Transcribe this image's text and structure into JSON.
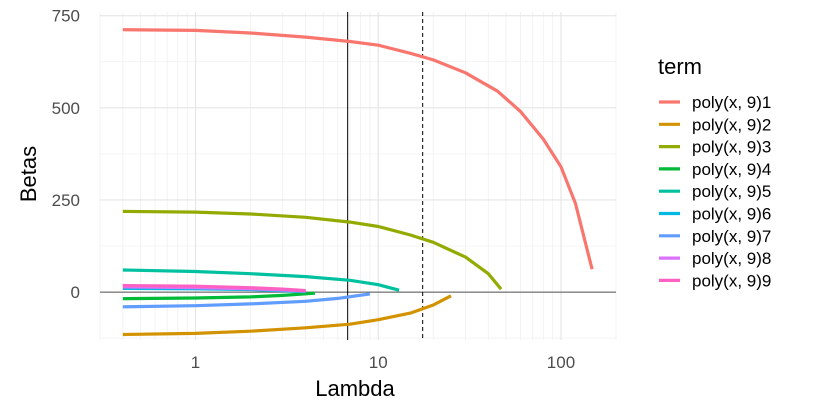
{
  "chart_data": {
    "type": "line",
    "xlabel": "Lambda",
    "ylabel": "Betas",
    "x_scale": "log10",
    "xlim": [
      0.3,
      200
    ],
    "ylim": [
      -130,
      760
    ],
    "x_ticks": [
      1,
      10,
      100
    ],
    "x_tick_labels": [
      "1",
      "10",
      "100"
    ],
    "y_ticks": [
      0,
      250,
      500,
      750
    ],
    "y_tick_labels": [
      "0",
      "250",
      "500",
      "750"
    ],
    "grid": true,
    "reference_lines": {
      "horizontal_zero": 0,
      "vertical_solid": 6.8,
      "vertical_dashed": 17.5
    },
    "legend_title": "term",
    "legend_position": "right",
    "series": [
      {
        "name": "poly(x, 9)1",
        "color": "#F8766D",
        "points": [
          [
            0.4,
            712
          ],
          [
            1,
            710
          ],
          [
            2,
            703
          ],
          [
            4,
            692
          ],
          [
            7,
            680
          ],
          [
            10,
            670
          ],
          [
            15,
            648
          ],
          [
            20,
            630
          ],
          [
            30,
            595
          ],
          [
            45,
            545
          ],
          [
            60,
            490
          ],
          [
            80,
            415
          ],
          [
            100,
            340
          ],
          [
            120,
            240
          ],
          [
            148,
            62
          ]
        ]
      },
      {
        "name": "poly(x, 9)2",
        "color": "#D39200",
        "points": [
          [
            0.4,
            -115
          ],
          [
            1,
            -112
          ],
          [
            2,
            -106
          ],
          [
            4,
            -97
          ],
          [
            7,
            -87
          ],
          [
            10,
            -75
          ],
          [
            15,
            -57
          ],
          [
            20,
            -35
          ],
          [
            25,
            -10
          ]
        ]
      },
      {
        "name": "poly(x, 9)3",
        "color": "#93AA00",
        "points": [
          [
            0.4,
            219
          ],
          [
            1,
            217
          ],
          [
            2,
            212
          ],
          [
            4,
            203
          ],
          [
            7,
            190
          ],
          [
            10,
            178
          ],
          [
            15,
            155
          ],
          [
            20,
            135
          ],
          [
            30,
            95
          ],
          [
            40,
            50
          ],
          [
            47,
            8
          ]
        ]
      },
      {
        "name": "poly(x, 9)4",
        "color": "#00BA38",
        "points": [
          [
            0.4,
            -18
          ],
          [
            1,
            -16
          ],
          [
            2,
            -13
          ],
          [
            3,
            -9
          ],
          [
            4.5,
            -3
          ]
        ]
      },
      {
        "name": "poly(x, 9)5",
        "color": "#00C19F",
        "points": [
          [
            0.4,
            60
          ],
          [
            1,
            56
          ],
          [
            2,
            50
          ],
          [
            4,
            42
          ],
          [
            7,
            32
          ],
          [
            10,
            20
          ],
          [
            13,
            5
          ]
        ]
      },
      {
        "name": "poly(x, 9)6",
        "color": "#00B9E3",
        "points": [
          [
            0.4,
            10
          ],
          [
            1,
            9
          ],
          [
            2,
            7
          ],
          [
            3,
            4
          ],
          [
            4,
            1
          ]
        ]
      },
      {
        "name": "poly(x, 9)7",
        "color": "#619CFF",
        "points": [
          [
            0.4,
            -40
          ],
          [
            1,
            -37
          ],
          [
            2,
            -32
          ],
          [
            4,
            -25
          ],
          [
            6,
            -17
          ],
          [
            9,
            -5
          ]
        ]
      },
      {
        "name": "poly(x, 9)8",
        "color": "#DB72FB",
        "points": [
          [
            0.4,
            14
          ],
          [
            1,
            12
          ],
          [
            2,
            9
          ],
          [
            3,
            6
          ],
          [
            4,
            3
          ]
        ]
      },
      {
        "name": "poly(x, 9)9",
        "color": "#FF61C3",
        "points": [
          [
            0.4,
            18
          ],
          [
            1,
            16
          ],
          [
            2,
            12
          ],
          [
            3,
            8
          ],
          [
            4,
            4
          ]
        ]
      }
    ]
  }
}
